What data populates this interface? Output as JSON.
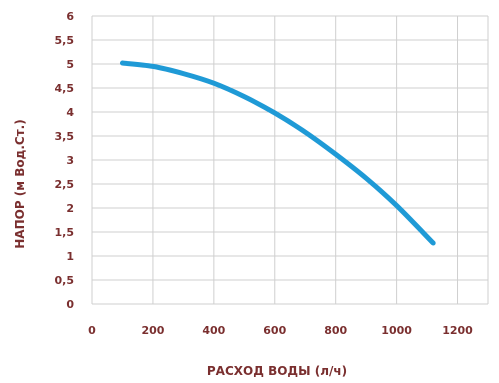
{
  "chart_data": {
    "type": "line",
    "title": "",
    "xlabel": "РАСХОД ВОДЫ (л/ч)",
    "ylabel": "НАПОР (м Вод.Ст.)",
    "xlim": [
      0,
      1300
    ],
    "ylim": [
      0,
      6
    ],
    "x_ticks": [
      "0",
      "200",
      "400",
      "600",
      "800",
      "1000",
      "1200"
    ],
    "y_ticks": [
      "0",
      "0,5",
      "1",
      "1,5",
      "2",
      "2,5",
      "3",
      "3,5",
      "4",
      "4,5",
      "5",
      "5,5",
      "6"
    ],
    "grid": true,
    "series": [
      {
        "color": "#1f9ad6",
        "x": [
          100,
          200,
          300,
          400,
          500,
          600,
          700,
          800,
          900,
          1000,
          1120
        ],
        "y": [
          5.02,
          4.95,
          4.8,
          4.6,
          4.32,
          3.98,
          3.58,
          3.12,
          2.62,
          2.05,
          1.27
        ]
      }
    ]
  }
}
